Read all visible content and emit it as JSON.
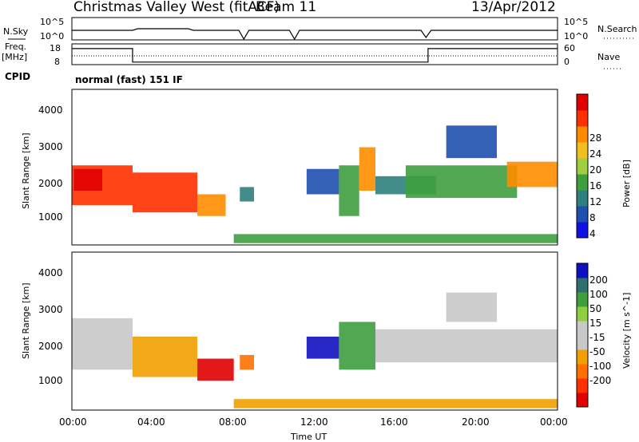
{
  "header": {
    "radar": "Christmas Valley West (fitACF)",
    "beam": "Beam 11",
    "date": "13/Apr/2012"
  },
  "top_panels": {
    "nsky_label": "N.Sky",
    "nsky_ticks": [
      "10^5",
      "10^0"
    ],
    "nsearch_label": "N.Search",
    "nsearch_ticks": [
      "10^5",
      "10^0"
    ],
    "freq_label": "Freq.",
    "freq_unit": "[MHz]",
    "freq_ticks": [
      "18",
      "8"
    ],
    "nave_label": "Nave",
    "nave_ticks": [
      "60",
      "0"
    ],
    "cpid_label": "CPID",
    "cpid_value": "normal (fast) 151 IF"
  },
  "colors": {
    "power_scale": [
      "#1010e0",
      "#1f4fb0",
      "#2f7f7f",
      "#3f9f3f",
      "#9fcf3f",
      "#f0c020",
      "#ff8c00",
      "#ff3000",
      "#e00000"
    ],
    "velocity_scale": [
      "#1010c0",
      "#2f6f6f",
      "#3f9f3f",
      "#8fcf3f",
      "#c8c8c8",
      "#c8c8c8",
      "#f0a000",
      "#ff7000",
      "#ff3000",
      "#e00000"
    ]
  },
  "chart_data": [
    {
      "type": "heatmap",
      "title": "Power",
      "ylabel": "Slant Range [km]",
      "xlabel": "Time UT",
      "ylim": [
        200,
        4500
      ],
      "x_ticks": [
        "00:00",
        "04:00",
        "08:00",
        "12:00",
        "16:00",
        "20:00",
        "00:00"
      ],
      "y_ticks": [
        "1000",
        "2000",
        "3000",
        "4000"
      ],
      "colorbar_label": "Power [dB]",
      "colorbar_ticks": [
        "28",
        "24",
        "20",
        "16",
        "12",
        "8",
        "4"
      ],
      "bands": [
        {
          "t0": 0.0,
          "t1": 3.0,
          "r0": 1300,
          "r1": 2400,
          "level": 26
        },
        {
          "t0": 0.1,
          "t1": 1.5,
          "r0": 1700,
          "r1": 2300,
          "level": 28
        },
        {
          "t0": 3.0,
          "t1": 6.2,
          "r0": 1100,
          "r1": 2200,
          "level": 27
        },
        {
          "t0": 6.2,
          "t1": 7.6,
          "r0": 1000,
          "r1": 1600,
          "level": 24
        },
        {
          "t0": 8.3,
          "t1": 9.0,
          "r0": 1400,
          "r1": 1800,
          "level": 10
        },
        {
          "t0": 11.6,
          "t1": 13.2,
          "r0": 1600,
          "r1": 2300,
          "level": 6
        },
        {
          "t0": 13.2,
          "t1": 14.2,
          "r0": 1000,
          "r1": 2400,
          "level": 12
        },
        {
          "t0": 14.2,
          "t1": 15.0,
          "r0": 1700,
          "r1": 2900,
          "level": 22
        },
        {
          "t0": 15.0,
          "t1": 18.0,
          "r0": 1600,
          "r1": 2100,
          "level": 10
        },
        {
          "t0": 16.5,
          "t1": 22.0,
          "r0": 1500,
          "r1": 2400,
          "level": 14
        },
        {
          "t0": 21.5,
          "t1": 24.0,
          "r0": 1800,
          "r1": 2500,
          "level": 24
        },
        {
          "t0": 18.5,
          "t1": 21.0,
          "r0": 2600,
          "r1": 3500,
          "level": 8
        },
        {
          "t0": 8.0,
          "t1": 24.0,
          "r0": 250,
          "r1": 500,
          "level": 12
        }
      ]
    },
    {
      "type": "heatmap",
      "title": "Velocity",
      "ylabel": "Slant Range [km]",
      "xlabel": "Time UT",
      "ylim": [
        200,
        4500
      ],
      "x_ticks": [
        "00:00",
        "04:00",
        "08:00",
        "12:00",
        "16:00",
        "20:00",
        "00:00"
      ],
      "y_ticks": [
        "1000",
        "2000",
        "3000",
        "4000"
      ],
      "colorbar_label": "Velocity [m s^-1]",
      "colorbar_ticks": [
        "200",
        "100",
        "50",
        "15",
        "-15",
        "-50",
        "-100",
        "-200"
      ],
      "bands": [
        {
          "t0": 0.0,
          "t1": 3.0,
          "r0": 1300,
          "r1": 2700,
          "level": 0
        },
        {
          "t0": 3.0,
          "t1": 6.2,
          "r0": 1100,
          "r1": 2200,
          "level": -40
        },
        {
          "t0": 6.2,
          "t1": 8.0,
          "r0": 1000,
          "r1": 1600,
          "level": -200
        },
        {
          "t0": 8.3,
          "t1": 9.0,
          "r0": 1300,
          "r1": 1700,
          "level": -80
        },
        {
          "t0": 11.6,
          "t1": 13.2,
          "r0": 1600,
          "r1": 2200,
          "level": 150
        },
        {
          "t0": 13.2,
          "t1": 15.0,
          "r0": 1300,
          "r1": 2600,
          "level": 40
        },
        {
          "t0": 15.0,
          "t1": 24.0,
          "r0": 1500,
          "r1": 2400,
          "level": 0
        },
        {
          "t0": 18.5,
          "t1": 21.0,
          "r0": 2600,
          "r1": 3400,
          "level": 0
        },
        {
          "t0": 8.0,
          "t1": 24.0,
          "r0": 250,
          "r1": 500,
          "level": -40
        }
      ]
    }
  ]
}
